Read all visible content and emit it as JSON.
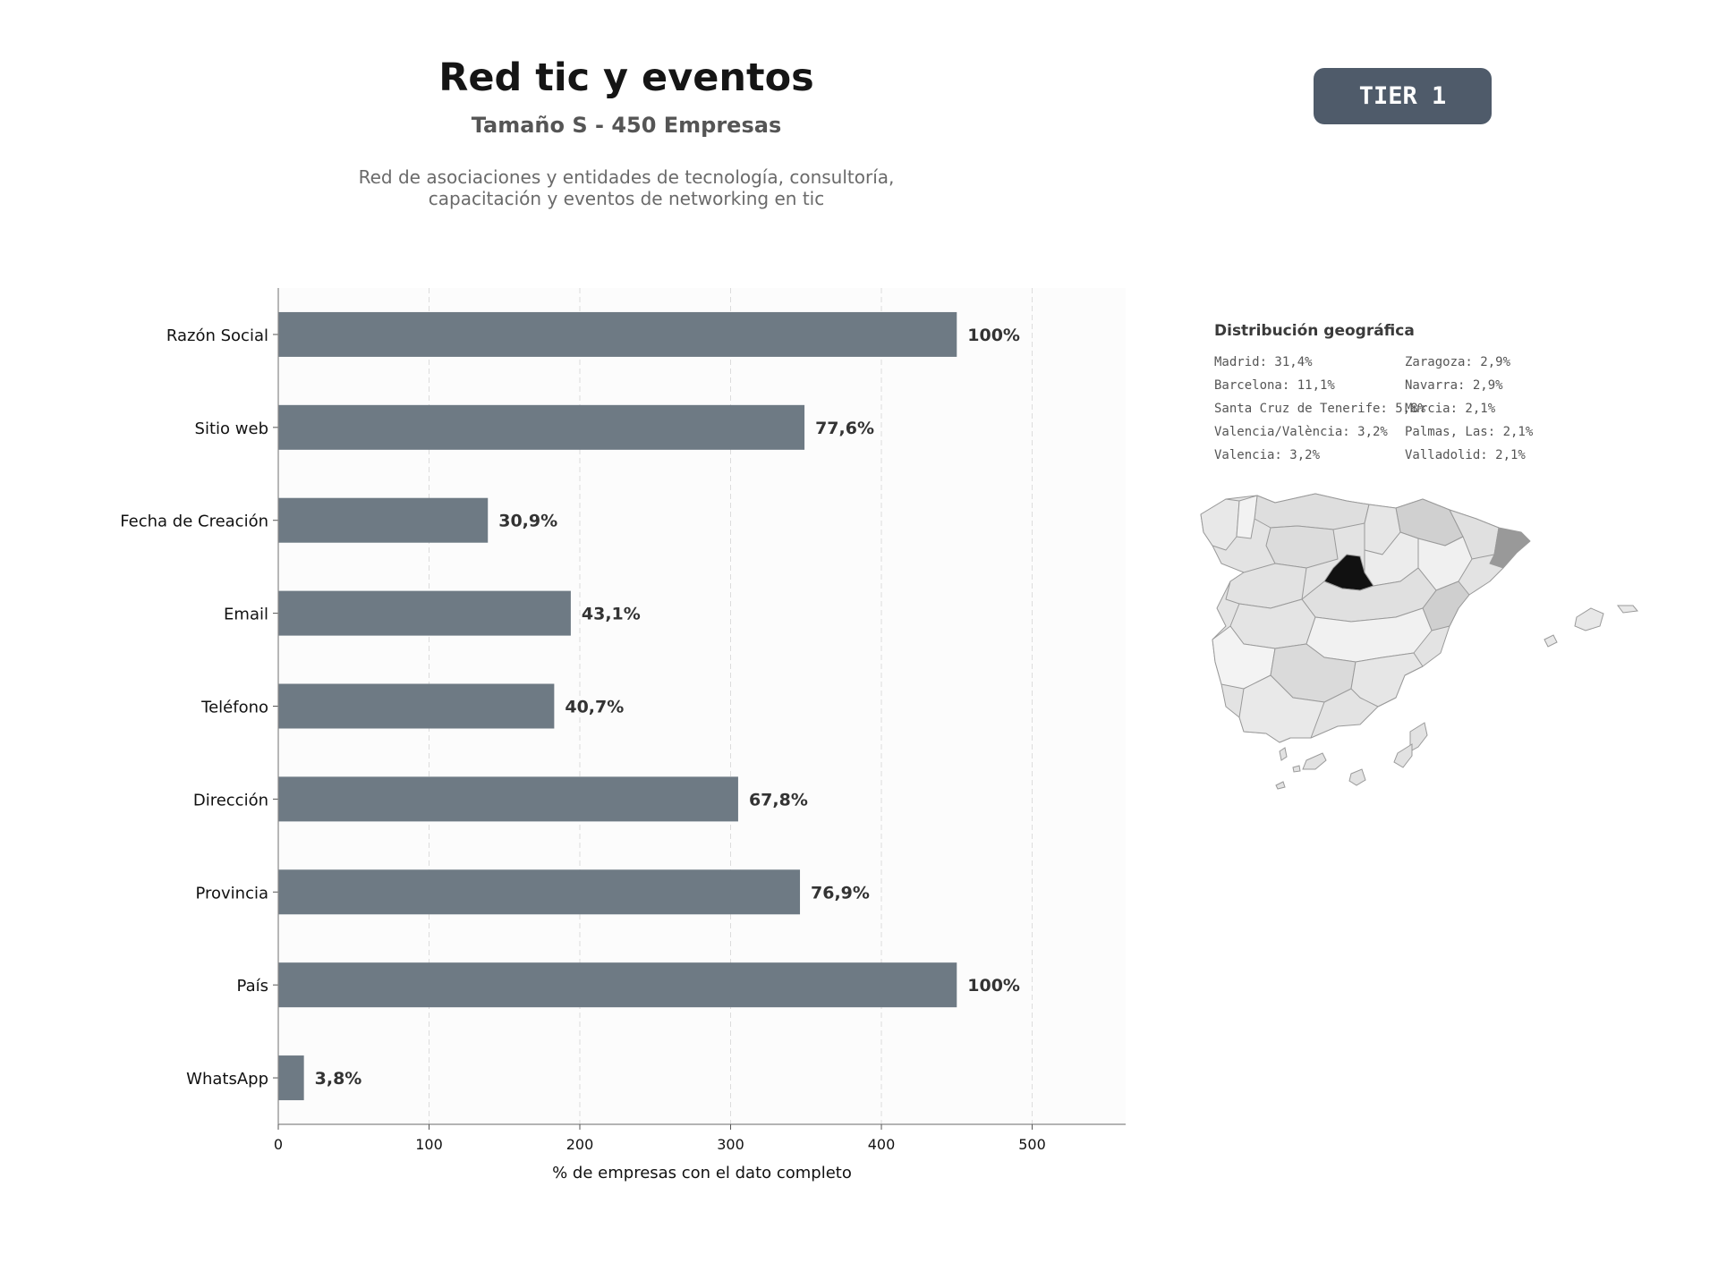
{
  "header": {
    "title": "Red tic y eventos",
    "subtitle": "Tamaño S - 450 Empresas",
    "description_line1": "Red de asociaciones y entidades de tecnología, consultoría,",
    "description_line2": "capacitación y eventos de networking en tic",
    "tier_label": "TIER 1"
  },
  "colors": {
    "bar": "#6e7a84",
    "badge": "#4f5b6a",
    "plot_background": "#fcfcfc",
    "map_max": "#111111",
    "map_high": "#999999"
  },
  "chart_data": {
    "type": "bar",
    "orientation": "horizontal",
    "categories": [
      "Razón Social",
      "Sitio web",
      "Fecha de Creación",
      "Email",
      "Teléfono",
      "Dirección",
      "Provincia",
      "País",
      "WhatsApp"
    ],
    "values": [
      450,
      349,
      139,
      194,
      183,
      305,
      346,
      450,
      17
    ],
    "data_labels": [
      "100%",
      "77,6%",
      "30,9%",
      "43,1%",
      "40,7%",
      "67,8%",
      "76,9%",
      "100%",
      "3,8%"
    ],
    "xlabel": "% de empresas con el dato completo",
    "xticks": [
      0,
      100,
      200,
      300,
      400,
      500
    ],
    "xlim": [
      0,
      562
    ],
    "grid": "vertical dashed"
  },
  "geo": {
    "title": "Distribución geográfica",
    "items": [
      "Madrid: 31,4%",
      "Barcelona: 11,1%",
      "Santa Cruz de Tenerife: 5,8%",
      "Valencia/València: 3,2%",
      "Valencia: 3,2%",
      "Zaragoza: 2,9%",
      "Navarra: 2,9%",
      "Murcia: 2,1%",
      "Palmas, Las: 2,1%",
      "Valladolid: 2,1%"
    ]
  }
}
